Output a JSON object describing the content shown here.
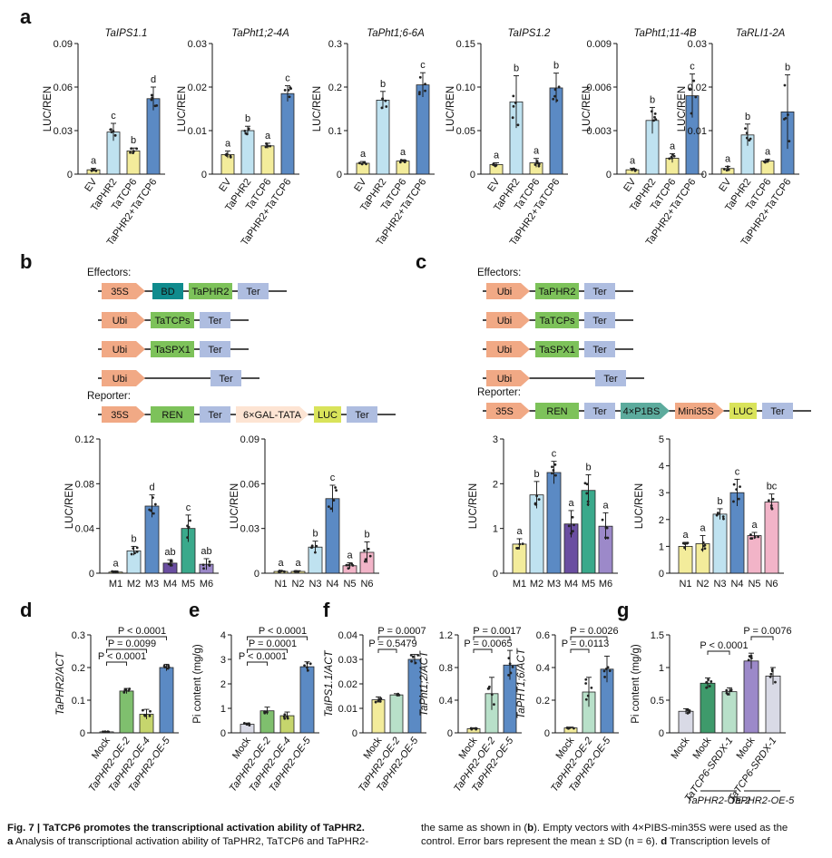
{
  "figure": {
    "panel_letters": [
      "a",
      "b",
      "c",
      "d",
      "e",
      "f",
      "g"
    ],
    "palette": {
      "yellow": "#f3ec9b",
      "lightblue": "#bfe2f0",
      "blue": "#5b8ac4",
      "purple": "#6a4ea1",
      "teal": "#3aa98b",
      "lightpurple": "#9c89c9",
      "pink": "#f2b4c8",
      "green": "#7fbf6e",
      "darkgreen": "#3e9a6b",
      "yellowgreen": "#c6d56d",
      "lightgreen": "#b8e0c9",
      "lightgray": "#d9dae6",
      "arrow_orange": "#f1a985",
      "bd_teal": "#0f8b8d",
      "gene_green": "#7dc25a",
      "ter_blue": "#aebde0",
      "luc_yellow": "#d9e35a",
      "p1bs_teal": "#5cab9d",
      "mini_orange": "#f1a985",
      "gal_fill": "#fde4d3"
    }
  },
  "chart_data": [
    {
      "id": "a1",
      "type": "bar",
      "title": "TaIPS1.1",
      "ylabel": "LUC/REN",
      "ylim": [
        0,
        0.09
      ],
      "ticks": [
        "0",
        "0.03",
        "0.06",
        "0.09"
      ],
      "categories": [
        "EV",
        "TaPHR2",
        "TaTCP6",
        "TaPHR2+TaTCP6"
      ],
      "values": [
        0.003,
        0.029,
        0.016,
        0.052
      ],
      "errors": [
        0.001,
        0.006,
        0.002,
        0.008
      ],
      "letters": [
        "a",
        "c",
        "b",
        "d"
      ],
      "colors": [
        "yellow",
        "lightblue",
        "yellow",
        "blue"
      ]
    },
    {
      "id": "a2",
      "type": "bar",
      "title": "TaPht1;2-4A",
      "ylabel": "LUC/REN",
      "ylim": [
        0,
        0.03
      ],
      "ticks": [
        "0",
        "0.01",
        "0.02",
        "0.03"
      ],
      "categories": [
        "EV",
        "TaPHR2",
        "TaTCP6",
        "TaPHR2+TaTCP6"
      ],
      "values": [
        0.0045,
        0.01,
        0.0065,
        0.0185
      ],
      "errors": [
        0.0008,
        0.001,
        0.0006,
        0.0018
      ],
      "letters": [
        "a",
        "b",
        "a",
        "c"
      ],
      "colors": [
        "yellow",
        "lightblue",
        "yellow",
        "blue"
      ]
    },
    {
      "id": "a3",
      "type": "bar",
      "title": "TaPht1;6-6A",
      "ylabel": "LUC/REN",
      "ylim": [
        0,
        0.3
      ],
      "ticks": [
        "0",
        "0.1",
        "0.2",
        "0.3"
      ],
      "categories": [
        "EV",
        "TaPHR2",
        "TaTCP6",
        "TaPHR2+TaTCP6"
      ],
      "values": [
        0.025,
        0.17,
        0.03,
        0.205
      ],
      "errors": [
        0.004,
        0.02,
        0.003,
        0.028
      ],
      "letters": [
        "a",
        "b",
        "a",
        "c"
      ],
      "colors": [
        "yellow",
        "lightblue",
        "yellow",
        "blue"
      ]
    },
    {
      "id": "a4",
      "type": "bar",
      "title": "TaIPS1.2",
      "ylabel": "LUC/REN",
      "ylim": [
        0,
        0.15
      ],
      "ticks": [
        "0",
        "0.05",
        "0.10",
        "0.15"
      ],
      "categories": [
        "EV",
        "TaPHR2",
        "TaTCP6",
        "TaPHR2+TaTCP6"
      ],
      "values": [
        0.011,
        0.083,
        0.013,
        0.099
      ],
      "errors": [
        0.002,
        0.03,
        0.005,
        0.017
      ],
      "letters": [
        "a",
        "b",
        "a",
        "b"
      ],
      "colors": [
        "yellow",
        "lightblue",
        "yellow",
        "blue"
      ]
    },
    {
      "id": "a5",
      "type": "bar",
      "title": "TaPht1;11-4B",
      "ylabel": "LUC/REN",
      "ylim": [
        0,
        0.009
      ],
      "ticks": [
        "0",
        "0.003",
        "0.006",
        "0.009"
      ],
      "categories": [
        "EV",
        "TaPHR2",
        "TaTCP6",
        "TaPHR2+TaTCP6"
      ],
      "values": [
        0.0003,
        0.0037,
        0.0011,
        0.0054
      ],
      "errors": [
        0.0001,
        0.0009,
        0.0003,
        0.0015
      ],
      "letters": [
        "a",
        "b",
        "a",
        "c"
      ],
      "colors": [
        "yellow",
        "lightblue",
        "yellow",
        "blue"
      ]
    },
    {
      "id": "a6",
      "type": "bar",
      "title": "TaRLI1-2A",
      "ylabel": "LUC/REN",
      "ylim": [
        0,
        0.03
      ],
      "ticks": [
        "0",
        "0.01",
        "0.02",
        "0.03"
      ],
      "categories": [
        "EV",
        "TaPHR2",
        "TaTCP6",
        "TaPHR2+TaTCP6"
      ],
      "values": [
        0.0013,
        0.009,
        0.003,
        0.0143
      ],
      "errors": [
        0.0005,
        0.0025,
        0.0004,
        0.0085
      ],
      "letters": [
        "a",
        "b",
        "a",
        "b"
      ],
      "colors": [
        "yellow",
        "lightblue",
        "yellow",
        "blue"
      ]
    },
    {
      "id": "b1",
      "type": "bar",
      "title": "",
      "ylabel": "LUC/REN",
      "ylim": [
        0,
        0.12
      ],
      "ticks": [
        "0",
        "0.04",
        "0.08",
        "0.12"
      ],
      "categories": [
        "M1",
        "M2",
        "M3",
        "M4",
        "M5",
        "M6"
      ],
      "values": [
        0.001,
        0.02,
        0.06,
        0.009,
        0.04,
        0.008
      ],
      "errors": [
        0.001,
        0.004,
        0.01,
        0.003,
        0.012,
        0.005
      ],
      "letters": [
        "a",
        "b",
        "d",
        "ab",
        "c",
        "ab"
      ],
      "colors": [
        "yellow",
        "lightblue",
        "blue",
        "purple",
        "teal",
        "lightpurple"
      ]
    },
    {
      "id": "b2",
      "type": "bar",
      "title": "",
      "ylabel": "LUC/REN",
      "ylim": [
        0,
        0.09
      ],
      "ticks": [
        "0",
        "0.03",
        "0.06",
        "0.09"
      ],
      "categories": [
        "N1",
        "N2",
        "N3",
        "N4",
        "N5",
        "N6"
      ],
      "values": [
        0.0012,
        0.0012,
        0.0175,
        0.05,
        0.005,
        0.014
      ],
      "errors": [
        0.0005,
        0.0005,
        0.004,
        0.009,
        0.002,
        0.007
      ],
      "letters": [
        "a",
        "a",
        "b",
        "c",
        "a",
        "b"
      ],
      "colors": [
        "yellow",
        "yellow",
        "lightblue",
        "blue",
        "pink",
        "pink"
      ]
    },
    {
      "id": "c1",
      "type": "bar",
      "title": "",
      "ylabel": "LUC/REN",
      "ylim": [
        0,
        3
      ],
      "ticks": [
        "0",
        "1",
        "2",
        "3"
      ],
      "categories": [
        "M1",
        "M2",
        "M3",
        "M4",
        "M5",
        "M6"
      ],
      "values": [
        0.65,
        1.75,
        2.25,
        1.1,
        1.85,
        1.05
      ],
      "errors": [
        0.12,
        0.3,
        0.25,
        0.3,
        0.35,
        0.3
      ],
      "letters": [
        "a",
        "b",
        "c",
        "a",
        "b",
        "a"
      ],
      "colors": [
        "yellow",
        "lightblue",
        "blue",
        "purple",
        "teal",
        "lightpurple"
      ]
    },
    {
      "id": "c2",
      "type": "bar",
      "title": "",
      "ylabel": "LUC/REN",
      "ylim": [
        0,
        5
      ],
      "ticks": [
        "0",
        "1",
        "2",
        "3",
        "4",
        "5"
      ],
      "categories": [
        "N1",
        "N2",
        "N3",
        "N4",
        "N5",
        "N6"
      ],
      "values": [
        1.0,
        1.1,
        2.2,
        3.0,
        1.4,
        2.65
      ],
      "errors": [
        0.15,
        0.3,
        0.2,
        0.5,
        0.12,
        0.3
      ],
      "letters": [
        "a",
        "a",
        "b",
        "c",
        "a",
        "bc"
      ],
      "colors": [
        "yellow",
        "yellow",
        "lightblue",
        "blue",
        "pink",
        "pink"
      ]
    },
    {
      "id": "d",
      "type": "bar",
      "title": "",
      "ylabel": "TaPHR2/ACT",
      "ylim": [
        0,
        0.3
      ],
      "ticks": [
        "0",
        "0.1",
        "0.2",
        "0.3"
      ],
      "categories": [
        "Mock",
        "TaPHR2-OE-2",
        "TaPHR2-OE-4",
        "TaPHR2-OE-5"
      ],
      "values": [
        0.003,
        0.128,
        0.057,
        0.2
      ],
      "errors": [
        0.001,
        0.008,
        0.015,
        0.01
      ],
      "colors": [
        "lightgray",
        "green",
        "yellowgreen",
        "blue"
      ],
      "brackets": [
        {
          "from": 0,
          "to": 3,
          "label": "P < 0.0001"
        },
        {
          "from": 0,
          "to": 2,
          "label": "P = 0.0099"
        },
        {
          "from": 0,
          "to": 1,
          "label": "P < 0.0001"
        }
      ]
    },
    {
      "id": "e",
      "type": "bar",
      "title": "",
      "ylabel": "Pi content (mg/g)",
      "ylim": [
        0,
        4
      ],
      "ticks": [
        "0",
        "1",
        "2",
        "3",
        "4"
      ],
      "categories": [
        "Mock",
        "TaPHR2-OE-2",
        "TaPHR2-OE-4",
        "TaPHR2-OE-5"
      ],
      "values": [
        0.35,
        0.9,
        0.7,
        2.7
      ],
      "errors": [
        0.05,
        0.15,
        0.15,
        0.2
      ],
      "colors": [
        "lightgray",
        "green",
        "yellowgreen",
        "blue"
      ],
      "brackets": [
        {
          "from": 0,
          "to": 3,
          "label": "P < 0.0001"
        },
        {
          "from": 0,
          "to": 2,
          "label": "P = 0.0001"
        },
        {
          "from": 0,
          "to": 1,
          "label": "P < 0.0001"
        }
      ]
    },
    {
      "id": "f1",
      "type": "bar",
      "title": "",
      "ylabel": "TaIPS1.1/ACT",
      "ylim": [
        0,
        0.04
      ],
      "ticks": [
        "0",
        "0.01",
        "0.02",
        "0.03",
        "0.04"
      ],
      "categories": [
        "Mock",
        "TaPHR2-OE-2",
        "TaPHR2-OE-5"
      ],
      "values": [
        0.0135,
        0.0155,
        0.03
      ],
      "errors": [
        0.0012,
        0.0005,
        0.002
      ],
      "colors": [
        "yellow",
        "lightgreen",
        "blue"
      ],
      "brackets": [
        {
          "from": 0,
          "to": 2,
          "label": "P = 0.0007"
        },
        {
          "from": 0,
          "to": 1,
          "label": "P = 0.5479"
        }
      ]
    },
    {
      "id": "f2",
      "type": "bar",
      "title": "",
      "ylabel": "TaPht1;2/ACT",
      "ylim": [
        0,
        1.2
      ],
      "ticks": [
        "0",
        "0.4",
        "0.8",
        "1.2"
      ],
      "categories": [
        "Mock",
        "TaPHR2-OE-2",
        "TaPHR2-OE-5"
      ],
      "values": [
        0.05,
        0.48,
        0.83
      ],
      "errors": [
        0.01,
        0.2,
        0.18
      ],
      "colors": [
        "yellow",
        "lightgreen",
        "blue"
      ],
      "brackets": [
        {
          "from": 0,
          "to": 2,
          "label": "P = 0.0017"
        },
        {
          "from": 0,
          "to": 1,
          "label": "P = 0.0065"
        }
      ]
    },
    {
      "id": "f3",
      "type": "bar",
      "title": "",
      "ylabel": "TaPHT1;6/ACT",
      "ylim": [
        0,
        0.6
      ],
      "ticks": [
        "0",
        "0.2",
        "0.4",
        "0.6"
      ],
      "categories": [
        "Mock",
        "TaPHR2-OE-2",
        "TaPHR2-OE-5"
      ],
      "values": [
        0.03,
        0.25,
        0.39
      ],
      "errors": [
        0.005,
        0.09,
        0.08
      ],
      "colors": [
        "yellow",
        "lightgreen",
        "blue"
      ],
      "brackets": [
        {
          "from": 0,
          "to": 2,
          "label": "P = 0.0026"
        },
        {
          "from": 0,
          "to": 1,
          "label": "P = 0.0113"
        }
      ]
    },
    {
      "id": "g",
      "type": "bar",
      "title": "",
      "ylabel": "Pi content (mg/g)",
      "ylim": [
        0,
        1.5
      ],
      "ticks": [
        "0",
        "0.5",
        "1",
        "1.5"
      ],
      "categories": [
        "Mock",
        "Mock",
        "TaTCP6-SRDX-1",
        "Mock",
        "TaTCP6-SRDX-1"
      ],
      "values": [
        0.33,
        0.76,
        0.63,
        1.1,
        0.87
      ],
      "errors": [
        0.04,
        0.08,
        0.06,
        0.12,
        0.13
      ],
      "colors": [
        "lightgray",
        "darkgreen",
        "lightgreen",
        "lightpurple",
        "lightgray"
      ],
      "brackets": [
        {
          "from": 1,
          "to": 2,
          "label": "P < 0.0001"
        },
        {
          "from": 3,
          "to": 4,
          "label": "P = 0.0076"
        }
      ],
      "groups": [
        {
          "from": 1,
          "to": 2,
          "label": "TaPHR2-OE-2"
        },
        {
          "from": 3,
          "to": 4,
          "label": "TaPHR2-OE-5"
        }
      ]
    }
  ],
  "constructs": {
    "b": {
      "effectors_label": "Effectors:",
      "reporter_label": "Reporter:",
      "effectors": [
        [
          {
            "t": "35S",
            "k": "arrow"
          },
          {
            "t": "BD",
            "k": "bd"
          },
          {
            "t": "TaPHR2",
            "k": "gene"
          },
          {
            "t": "Ter",
            "k": "ter"
          }
        ],
        [
          {
            "t": "Ubi",
            "k": "arrow"
          },
          {
            "t": "TaTCPs",
            "k": "gene"
          },
          {
            "t": "Ter",
            "k": "ter"
          }
        ],
        [
          {
            "t": "Ubi",
            "k": "arrow"
          },
          {
            "t": "TaSPX1",
            "k": "gene"
          },
          {
            "t": "Ter",
            "k": "ter"
          }
        ],
        [
          {
            "t": "Ubi",
            "k": "arrow"
          },
          {
            "t": "Ter",
            "k": "ter"
          }
        ]
      ],
      "reporter": [
        {
          "t": "35S",
          "k": "arrow"
        },
        {
          "t": "REN",
          "k": "gene"
        },
        {
          "t": "Ter",
          "k": "ter"
        },
        {
          "t": "6×GAL-TATA",
          "k": "gal"
        },
        {
          "t": "LUC",
          "k": "luc"
        },
        {
          "t": "Ter",
          "k": "ter"
        }
      ]
    },
    "c": {
      "effectors_label": "Effectors:",
      "reporter_label": "Reporter:",
      "effectors": [
        [
          {
            "t": "Ubi",
            "k": "arrow"
          },
          {
            "t": "TaPHR2",
            "k": "gene"
          },
          {
            "t": "Ter",
            "k": "ter"
          }
        ],
        [
          {
            "t": "Ubi",
            "k": "arrow"
          },
          {
            "t": "TaTCPs",
            "k": "gene"
          },
          {
            "t": "Ter",
            "k": "ter"
          }
        ],
        [
          {
            "t": "Ubi",
            "k": "arrow"
          },
          {
            "t": "TaSPX1",
            "k": "gene"
          },
          {
            "t": "Ter",
            "k": "ter"
          }
        ],
        [
          {
            "t": "Ubi",
            "k": "arrow"
          },
          {
            "t": "Ter",
            "k": "ter"
          }
        ]
      ],
      "reporter": [
        {
          "t": "35S",
          "k": "arrow"
        },
        {
          "t": "REN",
          "k": "gene"
        },
        {
          "t": "Ter",
          "k": "ter"
        },
        {
          "t": "4×P1BS",
          "k": "p1bs"
        },
        {
          "t": "Mini35S",
          "k": "mini"
        },
        {
          "t": "LUC",
          "k": "luc"
        },
        {
          "t": "Ter",
          "k": "ter"
        }
      ]
    }
  },
  "caption": {
    "left_line1_bold": "Fig. 7 | TaTCP6 promotes the transcriptional activation ability of TaPHR2.",
    "left_line2_bold": "a",
    "left_line2": " Analysis of transcriptional activation ability of TaPHR2, TaTCP6 and TaPHR2-",
    "right_line1": "the same as shown in (",
    "right_line1_b": "b",
    "right_line1_end": "). Empty vectors with 4×PIBS-min35S were used as the",
    "right_line2": "control. Error bars represent the mean ± SD (n = 6). ",
    "right_line2_b": "d",
    "right_line2_end": " Transcription levels of"
  }
}
